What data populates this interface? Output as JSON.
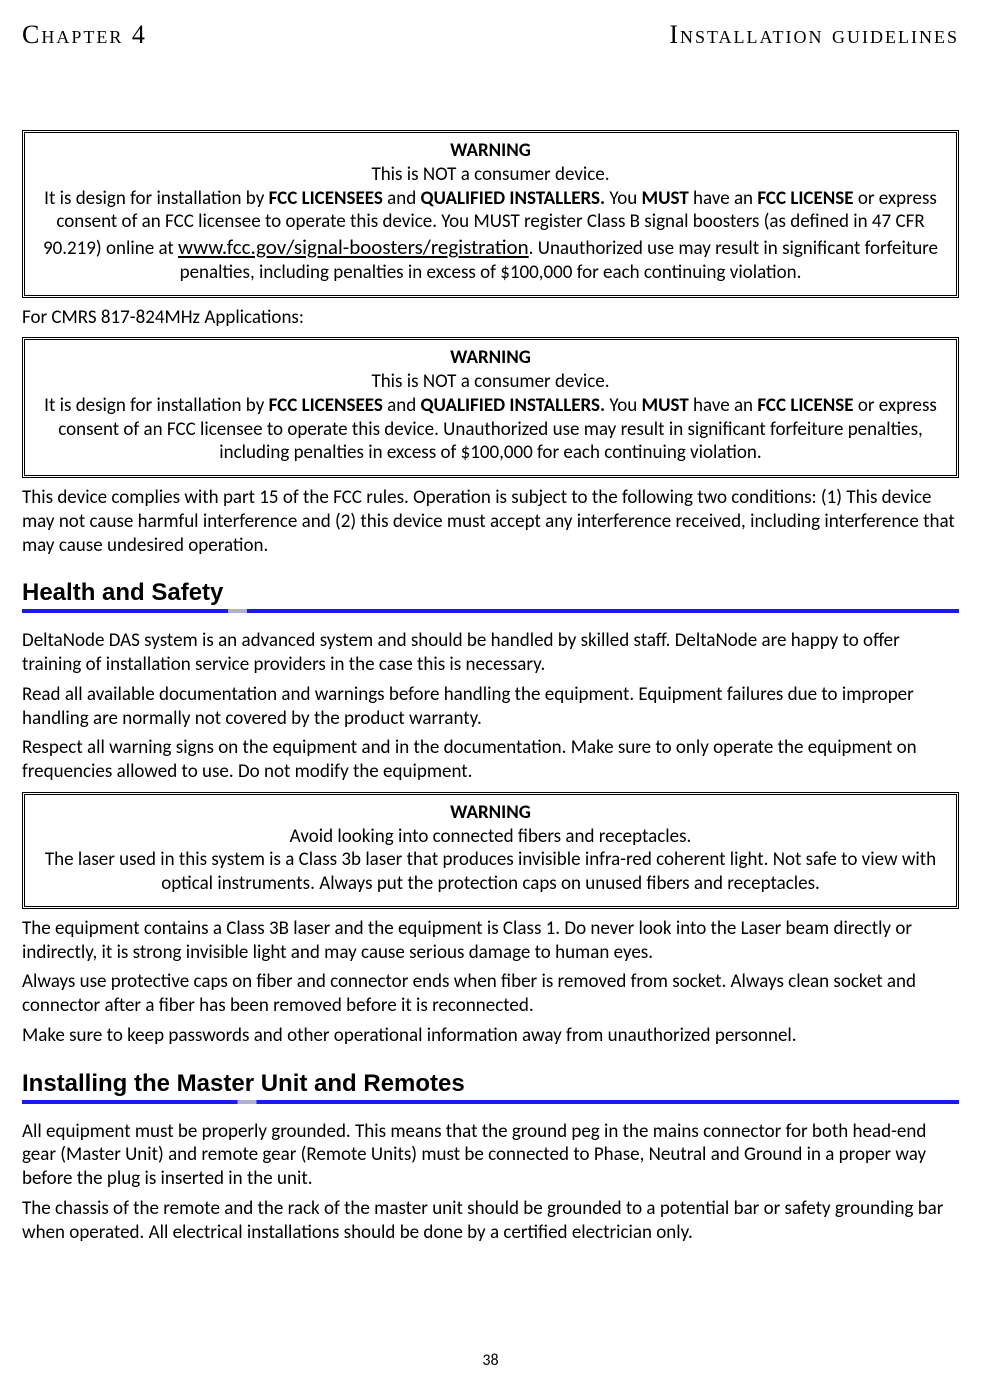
{
  "header": {
    "chapter": "Chapter 4",
    "title": "Installation guidelines"
  },
  "warning_box_1": {
    "title": "WARNING",
    "line1": "This is NOT a consumer device.",
    "p1_a": "It is design for installation by ",
    "p1_b": "FCC LICENSEES",
    "p1_c": " and ",
    "p1_d": "QUALIFIED INSTALLERS.",
    "p1_e": " You ",
    "p1_f": "MUST",
    "p1_g": " have an ",
    "p1_h": "FCC LICENSE",
    "p1_i": " or express consent of an FCC licensee to operate this device. You MUST register Class B signal boosters (as defined in 47 CFR 90.219) online at ",
    "link": "www.fcc.gov/signal-boosters/registration",
    "p1_j": ". Unauthorized use may result in significant forfeiture penalties, including penalties in excess of $100,000 for each continuing violation."
  },
  "interstitial_1": "For CMRS 817-824MHz Applications:",
  "warning_box_2": {
    "title": "WARNING",
    "line1": "This is NOT a consumer device.",
    "p1_a": "It is design for installation by ",
    "p1_b": "FCC LICENSEES",
    "p1_c": " and ",
    "p1_d": "QUALIFIED INSTALLERS.",
    "p1_e": " You ",
    "p1_f": "MUST",
    "p1_g": " have an ",
    "p1_h": "FCC LICENSE",
    "p1_i": " or express consent of an FCC licensee to operate this device. Unauthorized use may result in significant forfeiture penalties, including penalties in excess of $100,000 for each continuing violation."
  },
  "compliance_text": "This device complies with part 15 of the FCC rules. Operation is subject to the following two conditions: (1) This device may not cause harmful interference and (2) this device must accept any interference received, including interference that may cause undesired operation.",
  "section1": {
    "heading": "Health and Safety",
    "p1": "DeltaNode DAS system is an advanced system and should be handled by skilled staff. DeltaNode are happy to offer training of installation service providers in the case this is necessary.",
    "p2": "Read all available documentation and warnings before handling the equipment. Equipment failures due to improper handling are normally not covered by the product warranty.",
    "p3": "Respect all warning signs on the equipment and in the documentation. Make sure to only operate the equipment on frequencies allowed to use. Do not modify the equipment."
  },
  "warning_box_3": {
    "title": "WARNING",
    "line1": "Avoid looking into connected fibers and receptacles.",
    "line2": "The laser used in this system is a Class 3b laser that produces invisible infra-red coherent light. Not safe to view with optical instruments. Always put the protection caps on unused fibers and receptacles."
  },
  "section1_tail": {
    "p1": " The equipment contains a Class 3B laser and the equipment is Class 1. Do never look into the Laser beam directly or indirectly, it is strong invisible light and may cause serious damage to human eyes.",
    "p2": "Always use protective caps on fiber and connector ends when fiber is removed from socket. Always clean socket and connector after a fiber has been removed before it is reconnected.",
    "p3": "Make sure to keep passwords and other operational information away from unauthorized personnel."
  },
  "section2": {
    "heading": "Installing the Master Unit and Remotes",
    "p1": "All equipment must be properly grounded. This means that the ground peg in the mains connector for both head-end gear (Master Unit) and remote gear (Remote Units) must be connected to Phase, Neutral and Ground in a proper way before the plug is inserted in the unit.",
    "p2": "The chassis of the remote and the rack of the master unit should be grounded to a potential bar or safety grounding bar when operated. All electrical installations should be done by a certified electrician only."
  },
  "page_number": "38",
  "colors": {
    "rule_blue": "#1a1af0",
    "rule_light": "#b0b0d0",
    "text": "#000000",
    "background": "#ffffff"
  }
}
